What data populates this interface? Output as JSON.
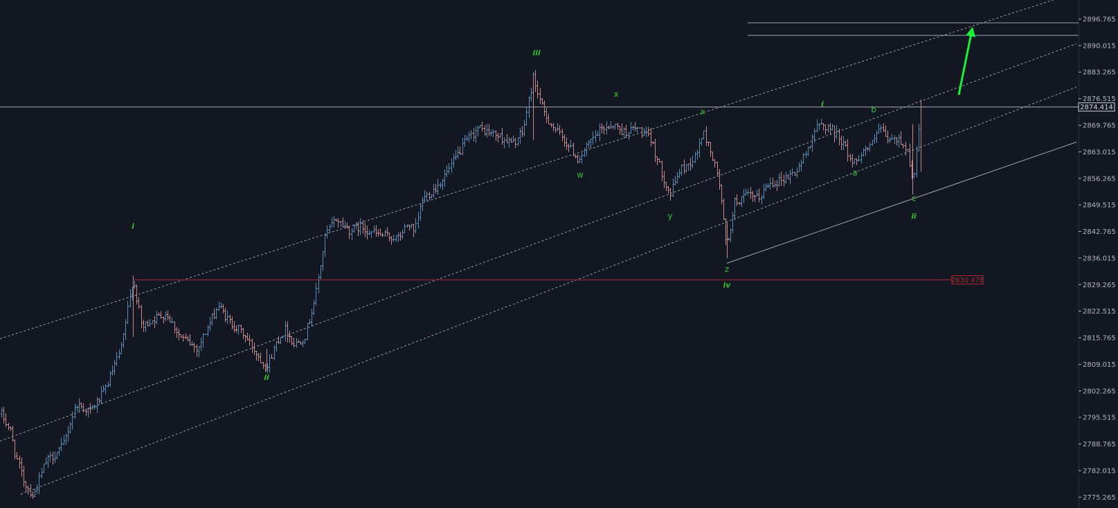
{
  "chart_data": {
    "type": "ohlc",
    "y_axis": {
      "position": "right",
      "ticks": [
        2896.765,
        2890.015,
        2883.265,
        2876.515,
        2869.765,
        2863.015,
        2856.265,
        2849.515,
        2842.765,
        2836.015,
        2829.265,
        2822.515,
        2815.765,
        2809.015,
        2802.265,
        2795.515,
        2788.765,
        2782.015,
        2775.265
      ],
      "tick_labels": [
        "2896.765",
        "2890.015",
        "2883.265",
        "2876.515",
        "2869.765",
        "2863.015",
        "2856.265",
        "2849.515",
        "2842.765",
        "2836.015",
        "2829.265",
        "2822.515",
        "2815.765",
        "2809.015",
        "2802.265",
        "2795.515",
        "2788.765",
        "2782.015",
        "2775.265"
      ],
      "range": [
        2772.5,
        2901.6
      ]
    },
    "x_range": [
      0,
      1450
    ],
    "price_tags": [
      {
        "value": 2874.414,
        "label": "2874.414",
        "color": "#d1d4dc",
        "line": "full"
      },
      {
        "value": 2830.478,
        "label": "2830.478",
        "color": "#b22833",
        "line": "from-wave-i"
      }
    ],
    "colors": {
      "up": "#5b8db8",
      "down": "#c88a8a",
      "background": "#131722",
      "wave_labels": "#2fbf2f",
      "arrow": "#19f03a"
    },
    "waypoints": [
      [
        0,
        2797
      ],
      [
        15,
        2792
      ],
      [
        22,
        2786
      ],
      [
        35,
        2779
      ],
      [
        48,
        2775.5
      ],
      [
        65,
        2784
      ],
      [
        90,
        2788
      ],
      [
        110,
        2799
      ],
      [
        130,
        2797
      ],
      [
        150,
        2802
      ],
      [
        175,
        2813
      ],
      [
        192,
        2831
      ],
      [
        205,
        2818
      ],
      [
        215,
        2820
      ],
      [
        240,
        2822
      ],
      [
        260,
        2816
      ],
      [
        285,
        2813
      ],
      [
        315,
        2824
      ],
      [
        330,
        2820
      ],
      [
        350,
        2817
      ],
      [
        370,
        2812
      ],
      [
        385,
        2808
      ],
      [
        400,
        2815
      ],
      [
        412,
        2818
      ],
      [
        425,
        2814
      ],
      [
        440,
        2816
      ],
      [
        455,
        2826
      ],
      [
        470,
        2842
      ],
      [
        485,
        2846
      ],
      [
        505,
        2843
      ],
      [
        520,
        2844
      ],
      [
        545,
        2842
      ],
      [
        575,
        2841
      ],
      [
        590,
        2845
      ],
      [
        598,
        2842
      ],
      [
        610,
        2851
      ],
      [
        630,
        2854
      ],
      [
        650,
        2859
      ],
      [
        670,
        2865
      ],
      [
        690,
        2869
      ],
      [
        705,
        2868
      ],
      [
        720,
        2867
      ],
      [
        740,
        2865
      ],
      [
        755,
        2868
      ],
      [
        770,
        2882
      ],
      [
        785,
        2873
      ],
      [
        800,
        2869
      ],
      [
        815,
        2866
      ],
      [
        835,
        2861
      ],
      [
        855,
        2866
      ],
      [
        870,
        2869
      ],
      [
        885,
        2870
      ],
      [
        900,
        2868
      ],
      [
        920,
        2869
      ],
      [
        940,
        2866
      ],
      [
        955,
        2858
      ],
      [
        968,
        2852
      ],
      [
        980,
        2858
      ],
      [
        995,
        2860
      ],
      [
        1005,
        2862
      ],
      [
        1015,
        2868
      ],
      [
        1025,
        2864
      ],
      [
        1038,
        2856
      ],
      [
        1050,
        2838
      ],
      [
        1060,
        2850
      ],
      [
        1080,
        2852
      ],
      [
        1095,
        2851
      ],
      [
        1110,
        2855
      ],
      [
        1130,
        2856
      ],
      [
        1150,
        2858
      ],
      [
        1165,
        2863
      ],
      [
        1175,
        2868
      ],
      [
        1185,
        2870
      ],
      [
        1200,
        2869
      ],
      [
        1215,
        2866
      ],
      [
        1232,
        2860
      ],
      [
        1245,
        2863
      ],
      [
        1260,
        2865
      ],
      [
        1270,
        2869
      ],
      [
        1282,
        2866
      ],
      [
        1300,
        2866
      ],
      [
        1312,
        2863
      ],
      [
        1318,
        2855
      ],
      [
        1322,
        2860
      ],
      [
        1330,
        2874
      ]
    ],
    "wave_labels": [
      {
        "text": "i",
        "x": 192,
        "y": 2843.5,
        "style": "roman"
      },
      {
        "text": "ii",
        "x": 385,
        "y": 2805,
        "style": "roman"
      },
      {
        "text": "iii",
        "x": 775,
        "y": 2887.5,
        "style": "roman"
      },
      {
        "text": "w",
        "x": 838,
        "y": 2856.5,
        "style": "letter"
      },
      {
        "text": "x",
        "x": 890,
        "y": 2877,
        "style": "letter"
      },
      {
        "text": "x",
        "x": 1015,
        "y": 2872.5,
        "style": "letter"
      },
      {
        "text": "y",
        "x": 968,
        "y": 2846,
        "style": "letter"
      },
      {
        "text": "z",
        "x": 1050,
        "y": 2832.5,
        "style": "letter"
      },
      {
        "text": "iv",
        "x": 1050,
        "y": 2828.5,
        "style": "roman"
      },
      {
        "text": "i",
        "x": 1188,
        "y": 2874.5,
        "style": "roman"
      },
      {
        "text": "a",
        "x": 1235,
        "y": 2857,
        "style": "letter"
      },
      {
        "text": "b",
        "x": 1262,
        "y": 2873,
        "style": "letter"
      },
      {
        "text": "c",
        "x": 1320,
        "y": 2850.5,
        "style": "letter"
      },
      {
        "text": "ii",
        "x": 1320,
        "y": 2846,
        "style": "roman"
      }
    ],
    "trend_lines": [
      {
        "name": "channel-upper",
        "from": [
          0,
          2815.5
        ],
        "to": [
          1555,
          2903.5
        ],
        "style": "dashed"
      },
      {
        "name": "channel-middle",
        "from": [
          0,
          2789.5
        ],
        "to": [
          1555,
          2890.5
        ],
        "style": "dashed"
      },
      {
        "name": "channel-lower",
        "from": [
          30,
          2776
        ],
        "to": [
          1555,
          2879.5
        ],
        "style": "dashed"
      },
      {
        "name": "wave-4-support",
        "from": [
          1050,
          2834.7
        ],
        "to": [
          1555,
          2865.5
        ],
        "style": "solid"
      }
    ],
    "target_lines": [
      2895.8,
      2892.6
    ],
    "target_lines_x_start": 1080,
    "arrow": {
      "from": [
        1385,
        2877.5
      ],
      "to": [
        1405,
        2894.8
      ]
    }
  }
}
